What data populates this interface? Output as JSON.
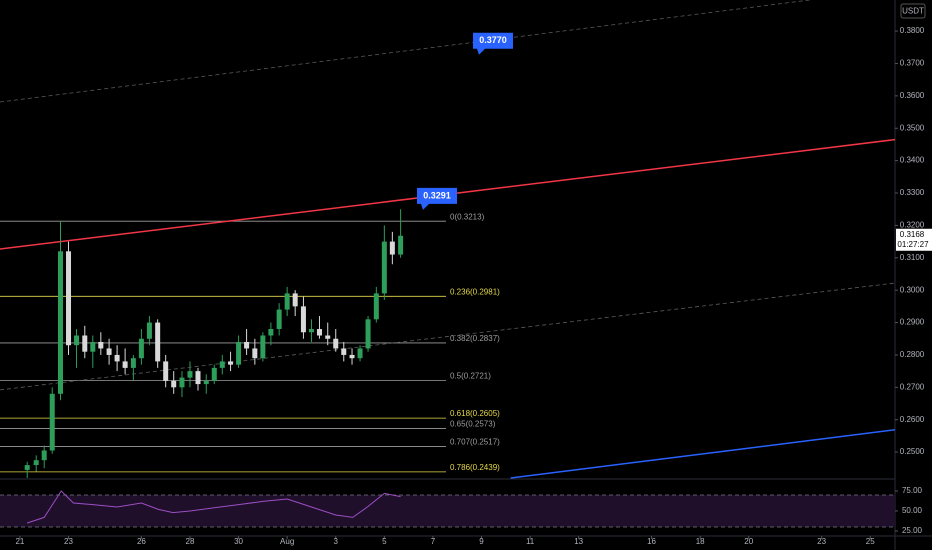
{
  "chart_data": {
    "type": "candlestick",
    "currency": "USDT",
    "countdown": "01:27:27",
    "last_price": 0.3168,
    "xlim": [
      -0.82,
      36.02
    ],
    "xticks": [
      {
        "value": 0,
        "label": "21"
      },
      {
        "value": 2,
        "label": "23"
      },
      {
        "value": 5,
        "label": "26"
      },
      {
        "value": 7,
        "label": "28"
      },
      {
        "value": 9,
        "label": "30"
      },
      {
        "value": 11,
        "label": "Aug"
      },
      {
        "value": 13,
        "label": "3"
      },
      {
        "value": 15,
        "label": "5"
      },
      {
        "value": 17,
        "label": "7"
      },
      {
        "value": 19,
        "label": "9"
      },
      {
        "value": 21,
        "label": "11"
      },
      {
        "value": 23,
        "label": "13"
      },
      {
        "value": 26,
        "label": "16"
      },
      {
        "value": 28,
        "label": "18"
      },
      {
        "value": 30,
        "label": "20"
      },
      {
        "value": 33,
        "label": "23"
      },
      {
        "value": 35,
        "label": "25"
      }
    ],
    "ylim": [
      0.242,
      0.3896
    ],
    "yticks": [
      {
        "value": 0.38,
        "label": "0.3800"
      },
      {
        "value": 0.37,
        "label": "0.3700"
      },
      {
        "value": 0.36,
        "label": "0.3600"
      },
      {
        "value": 0.35,
        "label": "0.3500"
      },
      {
        "value": 0.34,
        "label": "0.3400"
      },
      {
        "value": 0.33,
        "label": "0.3300"
      },
      {
        "value": 0.32,
        "label": "0.3200"
      },
      {
        "value": 0.31,
        "label": "0.3100"
      },
      {
        "value": 0.3,
        "label": "0.3000"
      },
      {
        "value": 0.29,
        "label": "0.2900"
      },
      {
        "value": 0.28,
        "label": "0.2800"
      },
      {
        "value": 0.27,
        "label": "0.2700"
      },
      {
        "value": 0.26,
        "label": "0.2600"
      },
      {
        "value": 0.25,
        "label": "0.2500"
      }
    ],
    "up_color": "#2e9e5b",
    "down_color": "#d9d9d9",
    "x": [
      0.3,
      0.67,
      1,
      1.33,
      1.67,
      2,
      2.33,
      2.67,
      3,
      3.33,
      3.67,
      4,
      4.33,
      4.67,
      5,
      5.33,
      5.67,
      6,
      6.33,
      6.67,
      7,
      7.33,
      7.67,
      8,
      8.33,
      8.67,
      9,
      9.33,
      9.67,
      10,
      10.33,
      10.67,
      11,
      11.33,
      11.67,
      12,
      12.33,
      12.67,
      13,
      13.33,
      13.67,
      14,
      14.33,
      14.67,
      15,
      15.33,
      15.67
    ],
    "open": [
      0.2445,
      0.246,
      0.2475,
      0.2505,
      0.268,
      0.312,
      0.283,
      0.286,
      0.281,
      0.284,
      0.282,
      0.28,
      0.278,
      0.276,
      0.279,
      0.285,
      0.29,
      0.278,
      0.272,
      0.27,
      0.273,
      0.275,
      0.271,
      0.272,
      0.276,
      0.278,
      0.277,
      0.284,
      0.282,
      0.279,
      0.286,
      0.288,
      0.294,
      0.299,
      0.295,
      0.287,
      0.288,
      0.286,
      0.285,
      0.282,
      0.28,
      0.279,
      0.282,
      0.291,
      0.299,
      0.315,
      0.311
    ],
    "high": [
      0.247,
      0.249,
      0.252,
      0.27,
      0.3213,
      0.315,
      0.288,
      0.289,
      0.286,
      0.287,
      0.285,
      0.283,
      0.282,
      0.28,
      0.288,
      0.292,
      0.291,
      0.28,
      0.275,
      0.275,
      0.278,
      0.276,
      0.274,
      0.277,
      0.28,
      0.281,
      0.286,
      0.288,
      0.285,
      0.287,
      0.29,
      0.296,
      0.301,
      0.3,
      0.298,
      0.291,
      0.292,
      0.29,
      0.288,
      0.284,
      0.282,
      0.283,
      0.292,
      0.301,
      0.32,
      0.318,
      0.325
    ],
    "low": [
      0.242,
      0.244,
      0.245,
      0.2495,
      0.266,
      0.28,
      0.276,
      0.279,
      0.276,
      0.28,
      0.277,
      0.275,
      0.274,
      0.272,
      0.277,
      0.283,
      0.276,
      0.27,
      0.268,
      0.267,
      0.27,
      0.269,
      0.268,
      0.271,
      0.274,
      0.275,
      0.276,
      0.28,
      0.277,
      0.278,
      0.283,
      0.286,
      0.292,
      0.292,
      0.285,
      0.284,
      0.285,
      0.283,
      0.281,
      0.278,
      0.277,
      0.278,
      0.281,
      0.29,
      0.297,
      0.308,
      0.31
    ],
    "close": [
      0.246,
      0.2475,
      0.2505,
      0.268,
      0.312,
      0.283,
      0.286,
      0.281,
      0.284,
      0.282,
      0.28,
      0.278,
      0.276,
      0.279,
      0.285,
      0.29,
      0.278,
      0.272,
      0.27,
      0.273,
      0.275,
      0.271,
      0.272,
      0.276,
      0.278,
      0.277,
      0.284,
      0.282,
      0.279,
      0.286,
      0.288,
      0.294,
      0.299,
      0.295,
      0.287,
      0.288,
      0.286,
      0.285,
      0.282,
      0.28,
      0.279,
      0.282,
      0.291,
      0.299,
      0.315,
      0.311,
      0.3168
    ],
    "fib_levels": [
      {
        "label": "0(0.3213)",
        "value": 0.3213,
        "color": "#9e9e9e"
      },
      {
        "label": "0.236(0.2981)",
        "value": 0.2981,
        "color": "#e5d84a"
      },
      {
        "label": "0.382(0.2837)",
        "value": 0.2837,
        "color": "#9e9e9e"
      },
      {
        "label": "0.5(0.2721)",
        "value": 0.2721,
        "color": "#9e9e9e"
      },
      {
        "label": "0.618(0.2605)",
        "value": 0.2605,
        "color": "#e5d84a"
      },
      {
        "label": "0.65(0.2573)",
        "value": 0.2573,
        "color": "#9e9e9e"
      },
      {
        "label": "0.707(0.2517)",
        "value": 0.2517,
        "color": "#9e9e9e"
      },
      {
        "label": "0.786(0.2439)",
        "value": 0.2439,
        "color": "#e5d84a"
      }
    ],
    "trend_lines": [
      {
        "color": "#f23645",
        "dashed": false,
        "x": [
          -0.82,
          36.02
        ],
        "values": [
          0.3127,
          0.3465
        ]
      },
      {
        "color": "#5d5d5d",
        "dashed": true,
        "x": [
          -0.82,
          32.5
        ],
        "values": [
          0.3581,
          0.3896
        ]
      },
      {
        "color": "#5d5d5d",
        "dashed": true,
        "x": [
          -0.82,
          36.02
        ],
        "values": [
          0.2692,
          0.3022
        ]
      },
      {
        "color": "#2962ff",
        "dashed": false,
        "x": [
          20.2,
          36.02
        ],
        "values": [
          0.242,
          0.2569
        ]
      }
    ],
    "callouts": [
      {
        "value": 0.377,
        "label": "0.3770"
      },
      {
        "value": 0.3291,
        "label": "0.3291"
      }
    ],
    "rsi": {
      "color": "#9c4fc4",
      "ylim": [
        20,
        88.75
      ],
      "yticks": [
        {
          "value": 75,
          "label": "75.00"
        },
        {
          "value": 50,
          "label": "50.00"
        },
        {
          "value": 25,
          "label": "25.00"
        }
      ],
      "bands": [
        70,
        30
      ],
      "x": [
        0.3,
        1,
        1.7,
        2.2,
        3,
        4,
        5,
        5.7,
        6.3,
        7,
        8,
        9,
        10,
        11,
        12,
        13,
        13.7,
        14.3,
        15,
        15.67
      ],
      "values": [
        35,
        42,
        75,
        60,
        58,
        55,
        60,
        52,
        48,
        50,
        54,
        58,
        62,
        65,
        55,
        45,
        42,
        55,
        72,
        68
      ]
    }
  }
}
